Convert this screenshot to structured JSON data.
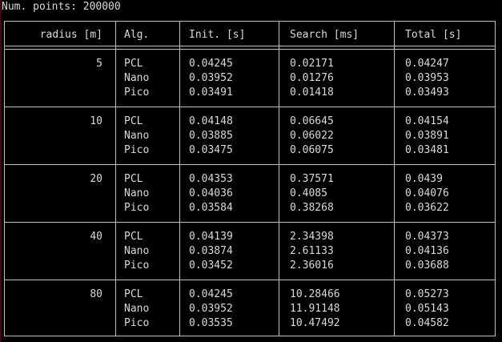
{
  "header_text": "Num. points: 200000",
  "columns": {
    "radius": "radius [m]",
    "alg": "Alg.",
    "init": "Init. [s]",
    "search": "Search [ms]",
    "total": "Total [s]"
  },
  "groups": [
    {
      "radius": "5",
      "rows": [
        {
          "alg": "PCL",
          "init": "0.04245",
          "search": "0.02171",
          "total": "0.04247"
        },
        {
          "alg": "Nano",
          "init": "0.03952",
          "search": "0.01276",
          "total": "0.03953"
        },
        {
          "alg": "Pico",
          "init": "0.03491",
          "search": "0.01418",
          "total": "0.03493"
        }
      ]
    },
    {
      "radius": "10",
      "rows": [
        {
          "alg": "PCL",
          "init": "0.04148",
          "search": "0.06645",
          "total": "0.04154"
        },
        {
          "alg": "Nano",
          "init": "0.03885",
          "search": "0.06022",
          "total": "0.03891"
        },
        {
          "alg": "Pico",
          "init": "0.03475",
          "search": "0.06075",
          "total": "0.03481"
        }
      ]
    },
    {
      "radius": "20",
      "rows": [
        {
          "alg": "PCL",
          "init": "0.04353",
          "search": "0.37571",
          "total": "0.0439"
        },
        {
          "alg": "Nano",
          "init": "0.04036",
          "search": "0.4085",
          "total": "0.04076"
        },
        {
          "alg": "Pico",
          "init": "0.03584",
          "search": "0.38268",
          "total": "0.03622"
        }
      ]
    },
    {
      "radius": "40",
      "rows": [
        {
          "alg": "PCL",
          "init": "0.04139",
          "search": "2.34398",
          "total": "0.04373"
        },
        {
          "alg": "Nano",
          "init": "0.03874",
          "search": "2.61133",
          "total": "0.04136"
        },
        {
          "alg": "Pico",
          "init": "0.03452",
          "search": "2.36016",
          "total": "0.03688"
        }
      ]
    },
    {
      "radius": "80",
      "rows": [
        {
          "alg": "PCL",
          "init": "0.04245",
          "search": "10.28466",
          "total": "0.05273"
        },
        {
          "alg": "Nano",
          "init": "0.03952",
          "search": "11.91148",
          "total": "0.05143"
        },
        {
          "alg": "Pico",
          "init": "0.03535",
          "search": "10.47492",
          "total": "0.04582"
        }
      ]
    }
  ]
}
